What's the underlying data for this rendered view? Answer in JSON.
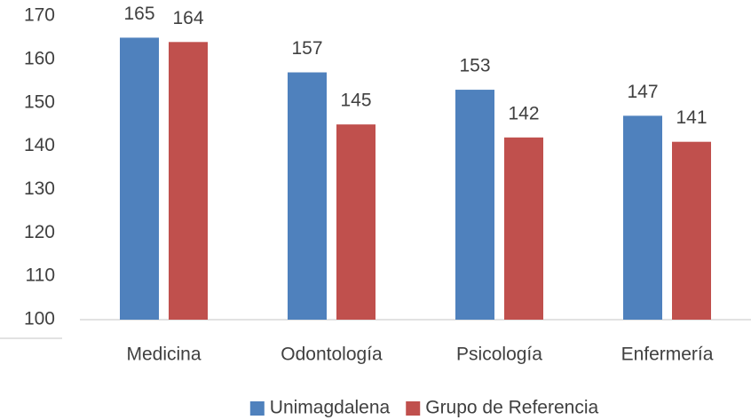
{
  "chart_data": {
    "type": "bar",
    "categories": [
      "Medicina",
      "Odontología",
      "Psicología",
      "Enfermería"
    ],
    "series": [
      {
        "name": "Unimagdalena",
        "color": "#4f81bd",
        "values": [
          165,
          157,
          153,
          147
        ]
      },
      {
        "name": "Grupo de Referencia",
        "color": "#c0504d",
        "values": [
          164,
          145,
          142,
          141
        ]
      }
    ],
    "ylim": [
      100,
      170
    ],
    "yticks": [
      100,
      110,
      120,
      130,
      140,
      150,
      160,
      170
    ],
    "grid": false,
    "legend": "bottom"
  }
}
